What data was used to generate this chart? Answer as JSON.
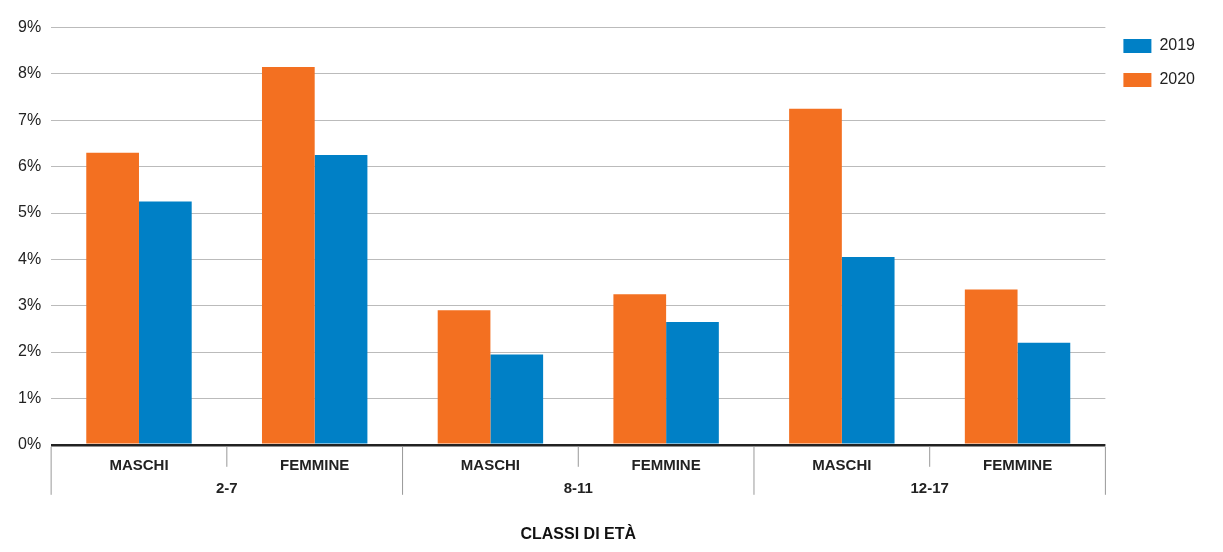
{
  "chart_data": {
    "type": "bar",
    "xlabel": "CLASSI DI ETÀ",
    "categories": [
      "MASCHI",
      "FEMMINE",
      "MASCHI",
      "FEMMINE",
      "MASCHI",
      "FEMMINE"
    ],
    "annotations": [
      "2-7",
      "8-11",
      "12-17"
    ],
    "series": [
      {
        "name": "2020",
        "color": "#f37021",
        "values": [
          6.3,
          8.15,
          2.9,
          3.25,
          7.25,
          3.35
        ]
      },
      {
        "name": "2019",
        "color": "#0080c6",
        "values": [
          5.25,
          6.25,
          1.95,
          2.65,
          4.05,
          2.2
        ]
      }
    ],
    "ylim": [
      0,
      9
    ],
    "yticks": [
      {
        "value": 0,
        "label": "0%"
      },
      {
        "value": 1,
        "label": "1%"
      },
      {
        "value": 2,
        "label": "2%"
      },
      {
        "value": 3,
        "label": "3%"
      },
      {
        "value": 4,
        "label": "4%"
      },
      {
        "value": 5,
        "label": "5%"
      },
      {
        "value": 6,
        "label": "6%"
      },
      {
        "value": 7,
        "label": "7%"
      },
      {
        "value": 8,
        "label": "8%"
      },
      {
        "value": 9,
        "label": "9%"
      }
    ],
    "grid": "y",
    "legend": "right"
  }
}
